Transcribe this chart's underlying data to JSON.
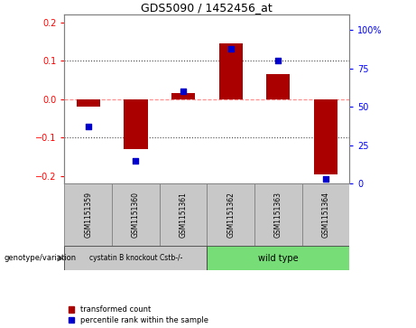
{
  "title": "GDS5090 / 1452456_at",
  "samples": [
    "GSM1151359",
    "GSM1151360",
    "GSM1151361",
    "GSM1151362",
    "GSM1151363",
    "GSM1151364"
  ],
  "transformed_counts": [
    -0.02,
    -0.13,
    0.015,
    0.145,
    0.065,
    -0.195
  ],
  "percentile_ranks": [
    37,
    15,
    60,
    88,
    80,
    3
  ],
  "group_colors": [
    "#c8c8c8",
    "#77DD77"
  ],
  "group1_label": "cystatin B knockout Cstb-/-",
  "group2_label": "wild type",
  "ylim_left": [
    -0.22,
    0.22
  ],
  "ylim_right": [
    0,
    110
  ],
  "yticks_left": [
    -0.2,
    -0.1,
    0.0,
    0.1,
    0.2
  ],
  "yticks_right": [
    0,
    25,
    50,
    75,
    100
  ],
  "ytick_labels_right": [
    "0",
    "25",
    "50",
    "75",
    "100%"
  ],
  "bar_color": "#AA0000",
  "dot_color": "#0000CC",
  "zero_line_color": "#FF8888",
  "dotted_line_color": "#444444",
  "bg_color": "#FFFFFF",
  "legend_tc": "transformed count",
  "legend_pr": "percentile rank within the sample",
  "genotype_label": "genotype/variation",
  "bar_width": 0.5
}
